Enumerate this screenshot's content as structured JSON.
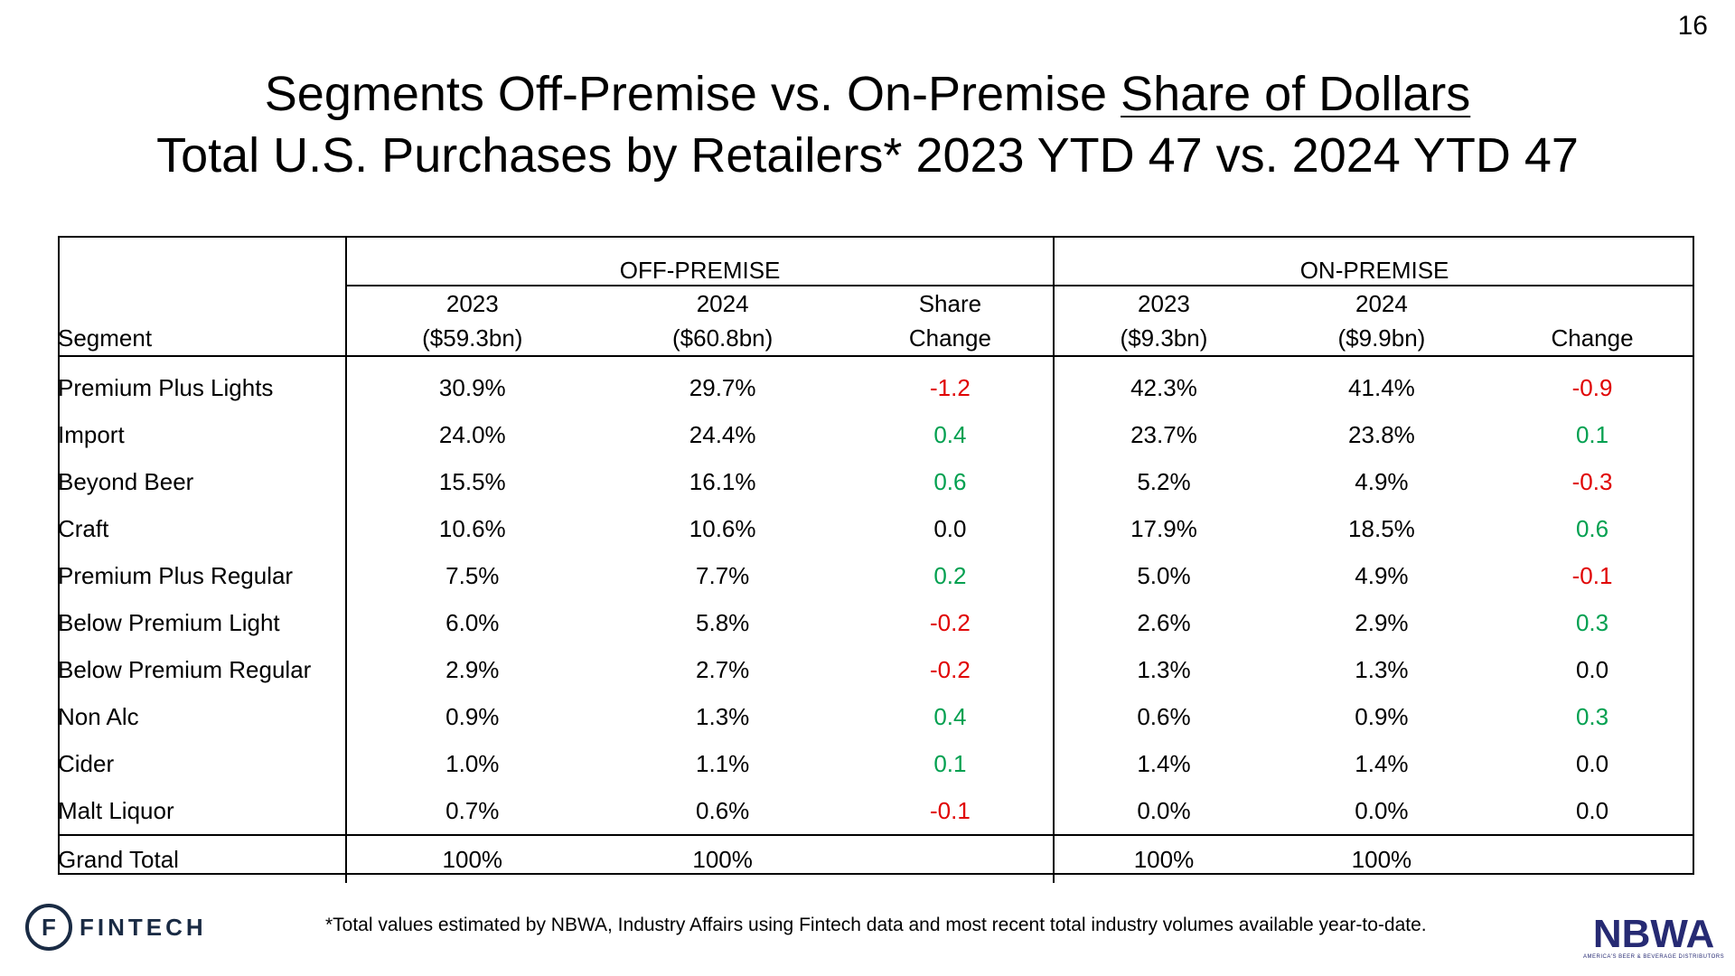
{
  "page_number": "16",
  "title": {
    "line1_prefix": "Segments Off-Premise vs. On-Premise ",
    "line1_underlined": "Share of Dollars",
    "line2": "Total U.S. Purchases by Retailers* 2023 YTD 47 vs. 2024 YTD 47"
  },
  "table": {
    "groups": [
      "OFF-PREMISE",
      "ON-PREMISE"
    ],
    "headers": {
      "segment": "Segment",
      "off_2023": [
        "2023",
        "($59.3bn)"
      ],
      "off_2024": [
        "2024",
        "($60.8bn)"
      ],
      "off_change": [
        "Share",
        "Change"
      ],
      "on_2023": [
        "2023",
        "($9.3bn)"
      ],
      "on_2024": [
        "2024",
        "($9.9bn)"
      ],
      "on_change": [
        "",
        "Change"
      ]
    },
    "rows": [
      [
        "Premium Plus Lights",
        "30.9%",
        "29.7%",
        "-1.2",
        "42.3%",
        "41.4%",
        "-0.9"
      ],
      [
        "Import",
        "24.0%",
        "24.4%",
        "0.4",
        "23.7%",
        "23.8%",
        "0.1"
      ],
      [
        "Beyond Beer",
        "15.5%",
        "16.1%",
        "0.6",
        "5.2%",
        "4.9%",
        "-0.3"
      ],
      [
        "Craft",
        "10.6%",
        "10.6%",
        "0.0",
        "17.9%",
        "18.5%",
        "0.6"
      ],
      [
        "Premium Plus Regular",
        "7.5%",
        "7.7%",
        "0.2",
        "5.0%",
        "4.9%",
        "-0.1"
      ],
      [
        "Below Premium Light",
        "6.0%",
        "5.8%",
        "-0.2",
        "2.6%",
        "2.9%",
        "0.3"
      ],
      [
        "Below Premium Regular",
        "2.9%",
        "2.7%",
        "-0.2",
        "1.3%",
        "1.3%",
        "0.0"
      ],
      [
        "Non Alc",
        "0.9%",
        "1.3%",
        "0.4",
        "0.6%",
        "0.9%",
        "0.3"
      ],
      [
        "Cider",
        "1.0%",
        "1.1%",
        "0.1",
        "1.4%",
        "1.4%",
        "0.0"
      ],
      [
        "Malt Liquor",
        "0.7%",
        "0.6%",
        "-0.1",
        "0.0%",
        "0.0%",
        "0.0"
      ]
    ],
    "grand_total": [
      "Grand Total",
      "100%",
      "100%",
      "",
      "100%",
      "100%",
      ""
    ]
  },
  "colors": {
    "negative": "#e00000",
    "positive": "#00a050"
  },
  "footnote": "*Total values estimated by NBWA, Industry Affairs using Fintech data and most recent total industry volumes available year-to-date.",
  "logos": {
    "fintech": "FINTECH",
    "nbwa": "NBWA",
    "nbwa_tagline": "AMERICA'S BEER & BEVERAGE DISTRIBUTORS"
  }
}
